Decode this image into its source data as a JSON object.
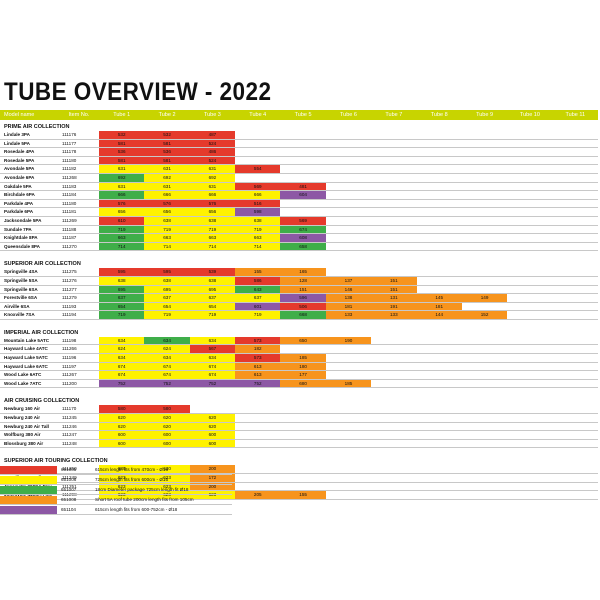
{
  "title": "TUBE OVERVIEW - 2022",
  "colors": {
    "R": "#e53a2c",
    "Y": "#fff200",
    "O": "#f7941d",
    "G": "#3fae49",
    "P": "#8d58a5",
    "header": "#c8d400"
  },
  "header": [
    "Model name",
    "Item No.",
    "Tube 1",
    "Tube 2",
    "Tube 3",
    "Tube 4",
    "Tube 5",
    "Tube 6",
    "Tube 7",
    "Tube 8",
    "Tube 9",
    "Tube 10",
    "Tube 11"
  ],
  "sections": [
    {
      "title": "PRIME AIR COLLECTION",
      "rows": [
        {
          "name": "Lindale 3PA",
          "item": "111176",
          "tubes": [
            [
              "532",
              "R"
            ],
            [
              "532",
              "R"
            ],
            [
              "487",
              "R"
            ]
          ]
        },
        {
          "name": "Lindale 5PA",
          "item": "111177",
          "tubes": [
            [
              "581",
              "R"
            ],
            [
              "581",
              "R"
            ],
            [
              "524",
              "R"
            ]
          ]
        },
        {
          "name": "Rosedale 4PA",
          "item": "111178",
          "tubes": [
            [
              "536",
              "R"
            ],
            [
              "536",
              "R"
            ],
            [
              "486",
              "R"
            ]
          ]
        },
        {
          "name": "Rosedale 5PA",
          "item": "111180",
          "tubes": [
            [
              "581",
              "R"
            ],
            [
              "581",
              "R"
            ],
            [
              "524",
              "R"
            ]
          ]
        },
        {
          "name": "Avondale 5PA",
          "item": "111182",
          "tubes": [
            [
              "631",
              "Y"
            ],
            [
              "631",
              "Y"
            ],
            [
              "631",
              "Y"
            ],
            [
              "554",
              "R"
            ]
          ]
        },
        {
          "name": "Avondale 6PA",
          "item": "111268",
          "tubes": [
            [
              "692",
              "G"
            ],
            [
              "692",
              "Y"
            ],
            [
              "692",
              "Y"
            ]
          ]
        },
        {
          "name": "Oakdale 5PA",
          "item": "111183",
          "tubes": [
            [
              "631",
              "Y"
            ],
            [
              "631",
              "Y"
            ],
            [
              "631",
              "Y"
            ],
            [
              "569",
              "R"
            ],
            [
              "481",
              "R"
            ]
          ]
        },
        {
          "name": "Birchdale 6PA",
          "item": "111184",
          "tubes": [
            [
              "666",
              "G"
            ],
            [
              "666",
              "Y"
            ],
            [
              "666",
              "Y"
            ],
            [
              "666",
              "Y"
            ],
            [
              "604",
              "P"
            ]
          ]
        },
        {
          "name": "Parkdale 4PA",
          "item": "111180",
          "tubes": [
            [
              "576",
              "R"
            ],
            [
              "576",
              "R"
            ],
            [
              "576",
              "R"
            ],
            [
              "516",
              "R"
            ]
          ]
        },
        {
          "name": "Parkdale 6PA",
          "item": "111181",
          "tubes": [
            [
              "656",
              "Y"
            ],
            [
              "656",
              "Y"
            ],
            [
              "656",
              "Y"
            ],
            [
              "598",
              "P"
            ]
          ]
        },
        {
          "name": "Jacksondale 5PA",
          "item": "111269",
          "tubes": [
            [
              "610",
              "R"
            ],
            [
              "638",
              "Y"
            ],
            [
              "638",
              "Y"
            ],
            [
              "638",
              "Y"
            ],
            [
              "569",
              "R"
            ]
          ]
        },
        {
          "name": "Sundale 7PA",
          "item": "111188",
          "tubes": [
            [
              "719",
              "G"
            ],
            [
              "719",
              "Y"
            ],
            [
              "719",
              "Y"
            ],
            [
              "719",
              "Y"
            ],
            [
              "674",
              "G"
            ]
          ]
        },
        {
          "name": "Knightdale 8PA",
          "item": "111187",
          "tubes": [
            [
              "663",
              "G"
            ],
            [
              "663",
              "Y"
            ],
            [
              "663",
              "Y"
            ],
            [
              "663",
              "Y"
            ],
            [
              "608",
              "P"
            ]
          ]
        },
        {
          "name": "Queensdale 8PA",
          "item": "111270",
          "tubes": [
            [
              "714",
              "G"
            ],
            [
              "714",
              "Y"
            ],
            [
              "714",
              "Y"
            ],
            [
              "714",
              "Y"
            ],
            [
              "658",
              "G"
            ]
          ]
        }
      ]
    },
    {
      "title": "SUPERIOR AIR COLLECTION",
      "rows": [
        {
          "name": "Springville 4SA",
          "item": "111275",
          "tubes": [
            [
              "595",
              "R"
            ],
            [
              "595",
              "R"
            ],
            [
              "539",
              "R"
            ],
            [
              "155",
              "O"
            ],
            [
              "165",
              "O"
            ]
          ]
        },
        {
          "name": "Springville 5SA",
          "item": "111276",
          "tubes": [
            [
              "638",
              "Y"
            ],
            [
              "638",
              "Y"
            ],
            [
              "638",
              "Y"
            ],
            [
              "586",
              "R"
            ],
            [
              "128",
              "O"
            ],
            [
              "137",
              "O"
            ],
            [
              "151",
              "O"
            ]
          ]
        },
        {
          "name": "Springville 6SA",
          "item": "111277",
          "tubes": [
            [
              "695",
              "G"
            ],
            [
              "695",
              "Y"
            ],
            [
              "695",
              "Y"
            ],
            [
              "643",
              "G"
            ],
            [
              "151",
              "O"
            ],
            [
              "146",
              "O"
            ],
            [
              "151",
              "O"
            ]
          ]
        },
        {
          "name": "Forestville 6SA",
          "item": "111279",
          "tubes": [
            [
              "637",
              "G"
            ],
            [
              "637",
              "Y"
            ],
            [
              "637",
              "Y"
            ],
            [
              "637",
              "Y"
            ],
            [
              "596",
              "P"
            ],
            [
              "138",
              "O"
            ],
            [
              "131",
              "O"
            ],
            [
              "145",
              "O"
            ],
            [
              "149",
              "O"
            ]
          ]
        },
        {
          "name": "Airville 6SA",
          "item": "111193",
          "tubes": [
            [
              "654",
              "G"
            ],
            [
              "654",
              "Y"
            ],
            [
              "654",
              "Y"
            ],
            [
              "601",
              "P"
            ],
            [
              "506",
              "R"
            ],
            [
              "181",
              "O"
            ],
            [
              "191",
              "O"
            ],
            [
              "181",
              "O"
            ]
          ]
        },
        {
          "name": "Knoxville 7SA",
          "item": "111194",
          "tubes": [
            [
              "719",
              "G"
            ],
            [
              "719",
              "Y"
            ],
            [
              "719",
              "Y"
            ],
            [
              "719",
              "Y"
            ],
            [
              "668",
              "G"
            ],
            [
              "133",
              "O"
            ],
            [
              "133",
              "O"
            ],
            [
              "144",
              "O"
            ],
            [
              "152",
              "O"
            ]
          ]
        }
      ]
    },
    {
      "title": "IMPERIAL AIR COLLECTION",
      "rows": [
        {
          "name": "Mountain Lake 5ATC",
          "item": "111198",
          "tubes": [
            [
              "634",
              "Y"
            ],
            [
              "634",
              "G"
            ],
            [
              "634",
              "Y"
            ],
            [
              "573",
              "R"
            ],
            [
              "650",
              "O"
            ],
            [
              "190",
              "O"
            ]
          ]
        },
        {
          "name": "Hayward Lake 4ATC",
          "item": "111266",
          "tubes": [
            [
              "624",
              "Y"
            ],
            [
              "624",
              "Y"
            ],
            [
              "567",
              "R"
            ],
            [
              "182",
              "O"
            ]
          ]
        },
        {
          "name": "Hayward Lake 5ATC",
          "item": "111196",
          "tubes": [
            [
              "634",
              "Y"
            ],
            [
              "634",
              "Y"
            ],
            [
              "634",
              "Y"
            ],
            [
              "573",
              "R"
            ],
            [
              "185",
              "O"
            ]
          ]
        },
        {
          "name": "Hayward Lake 6ATC",
          "item": "111197",
          "tubes": [
            [
              "674",
              "Y"
            ],
            [
              "674",
              "Y"
            ],
            [
              "674",
              "Y"
            ],
            [
              "613",
              "O"
            ],
            [
              "180",
              "O"
            ]
          ]
        },
        {
          "name": "Wood Lake 6ATC",
          "item": "111267",
          "tubes": [
            [
              "674",
              "Y"
            ],
            [
              "674",
              "Y"
            ],
            [
              "674",
              "Y"
            ],
            [
              "613",
              "O"
            ],
            [
              "177",
              "O"
            ]
          ]
        },
        {
          "name": "Wood Lake 7ATC",
          "item": "111200",
          "tubes": [
            [
              "752",
              "P"
            ],
            [
              "752",
              "P"
            ],
            [
              "752",
              "P"
            ],
            [
              "752",
              "P"
            ],
            [
              "680",
              "O"
            ],
            [
              "185",
              "O"
            ]
          ]
        }
      ]
    },
    {
      "title": "AIR CRUISING COLLECTION",
      "rows": [
        {
          "name": "Newburg 160 Air",
          "item": "111170",
          "tubes": [
            [
              "580",
              "R"
            ],
            [
              "580",
              "R"
            ]
          ]
        },
        {
          "name": "Newburg 240 Air",
          "item": "111245",
          "tubes": [
            [
              "620",
              "Y"
            ],
            [
              "620",
              "Y"
            ],
            [
              "620",
              "Y"
            ]
          ]
        },
        {
          "name": "Newburg 240 Air Tall",
          "item": "111246",
          "tubes": [
            [
              "620",
              "Y"
            ],
            [
              "620",
              "Y"
            ],
            [
              "620",
              "Y"
            ]
          ]
        },
        {
          "name": "Wolfburg 380 Air",
          "item": "111247",
          "tubes": [
            [
              "600",
              "Y"
            ],
            [
              "600",
              "Y"
            ],
            [
              "600",
              "Y"
            ]
          ]
        },
        {
          "name": "Blossburg 380 Air",
          "item": "111248",
          "tubes": [
            [
              "600",
              "Y"
            ],
            [
              "600",
              "Y"
            ],
            [
              "600",
              "Y"
            ]
          ]
        }
      ]
    },
    {
      "title": "SUPERIOR AIR TOURING COLLECTION",
      "rows": [
        {
          "name": "Parkville 200SA",
          "item": "111250",
          "tubes": [
            [
              "630",
              "Y"
            ],
            [
              "630",
              "Y"
            ],
            [
              "200",
              "O"
            ]
          ]
        },
        {
          "name": "Mayville 260SA flex",
          "item": "111249",
          "tubes": [
            [
              "623",
              "Y"
            ],
            [
              "623",
              "Y"
            ],
            [
              "172",
              "O"
            ]
          ]
        },
        {
          "name": "Jonesville 290SA Flex",
          "item": "111251",
          "tubes": [
            [
              "623",
              "Y"
            ],
            [
              "623",
              "Y"
            ],
            [
              "200",
              "O"
            ]
          ]
        },
        {
          "name": "Jonesville 440SA Flex",
          "item": "111298",
          "tubes": [
            [
              "623",
              "Y"
            ],
            [
              "623",
              "Y"
            ],
            [
              "623",
              "Y"
            ],
            [
              "205",
              "O"
            ],
            [
              "155",
              "O"
            ]
          ]
        }
      ]
    }
  ],
  "legend": [
    {
      "color": "R",
      "number": "651005",
      "text": "615cm length fits from 470cm - Ø16"
    },
    {
      "color": "Y",
      "number": "651006",
      "text": "725cm length fits from 600cm - Ø16"
    },
    {
      "color": "G",
      "number": "651007",
      "text": "18cm Diameter package 725cm length fit Ø18"
    },
    {
      "color": "O",
      "number": "651008",
      "text": "Short 5A roof tube 200cm length fits from 105cm"
    },
    {
      "color": "P",
      "number": "651104",
      "text": "615cm length fits from 600-752cm - Ø18"
    }
  ]
}
